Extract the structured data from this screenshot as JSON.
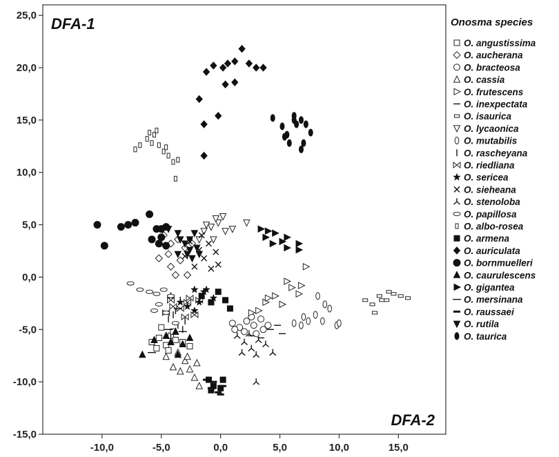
{
  "chart_data": {
    "type": "scatter",
    "title": "",
    "corner_labels": {
      "top_left": "DFA-1",
      "bottom_right": "DFA-2"
    },
    "xlim": [
      -15,
      19
    ],
    "ylim": [
      -15,
      26
    ],
    "x_ticks": [
      {
        "value": -10,
        "label": "-10,0"
      },
      {
        "value": -5,
        "label": "-5,0"
      },
      {
        "value": 0,
        "label": "0,0"
      },
      {
        "value": 5,
        "label": "5,0"
      },
      {
        "value": 10,
        "label": "10,0"
      },
      {
        "value": 15,
        "label": "15,0"
      }
    ],
    "y_ticks": [
      {
        "value": 25,
        "label": "25,0"
      },
      {
        "value": 20,
        "label": "20,0"
      },
      {
        "value": 15,
        "label": "15,0"
      },
      {
        "value": 10,
        "label": "10,0"
      },
      {
        "value": 5,
        "label": "5,0"
      },
      {
        "value": 0,
        "label": "0,0"
      },
      {
        "value": -5,
        "label": "-5,0"
      },
      {
        "value": -10,
        "label": "-10,0"
      },
      {
        "value": -15,
        "label": "-15,0"
      }
    ],
    "legend": {
      "title": "Onosma species",
      "placement": "right"
    },
    "series": [
      {
        "name": "O. angustissima",
        "marker": "square-open",
        "points": [
          [
            -5.8,
            -6.2
          ],
          [
            -5.2,
            -5.8
          ],
          [
            -4.6,
            -6.5
          ],
          [
            -4.2,
            -5.6
          ],
          [
            -5.0,
            -4.8
          ],
          [
            -3.8,
            -6.0
          ],
          [
            -4.4,
            -7.0
          ],
          [
            -3.2,
            -6.2
          ],
          [
            -2.6,
            -6.6
          ],
          [
            -5.4,
            -6.8
          ],
          [
            -4.0,
            -5.2
          ]
        ]
      },
      {
        "name": "O. aucherana",
        "marker": "diamond-open",
        "points": [
          [
            -4.8,
            4.0
          ],
          [
            -4.2,
            3.2
          ],
          [
            -3.6,
            3.6
          ],
          [
            -4.4,
            2.2
          ],
          [
            -3.0,
            2.8
          ],
          [
            -5.2,
            1.8
          ],
          [
            -4.2,
            1.0
          ],
          [
            -3.8,
            0.2
          ],
          [
            -2.8,
            0.2
          ],
          [
            -3.4,
            1.6
          ],
          [
            -2.4,
            3.2
          ]
        ]
      },
      {
        "name": "O. bracteosa",
        "marker": "circle-open",
        "points": [
          [
            1.0,
            -4.4
          ],
          [
            1.6,
            -4.8
          ],
          [
            2.2,
            -4.2
          ],
          [
            2.8,
            -4.6
          ],
          [
            3.4,
            -4.0
          ],
          [
            4.0,
            -4.6
          ],
          [
            2.0,
            -5.2
          ],
          [
            1.2,
            -5.0
          ],
          [
            3.0,
            -5.4
          ],
          [
            2.6,
            -3.8
          ],
          [
            3.6,
            -5.0
          ]
        ]
      },
      {
        "name": "O. cassia",
        "marker": "triangle-up-open",
        "points": [
          [
            -3.6,
            -7.2
          ],
          [
            -3.0,
            -8.0
          ],
          [
            -2.6,
            -8.8
          ],
          [
            -2.2,
            -9.6
          ],
          [
            -1.8,
            -10.4
          ],
          [
            -4.0,
            -8.6
          ],
          [
            -3.4,
            -9.0
          ],
          [
            -2.8,
            -7.6
          ],
          [
            -4.6,
            -7.6
          ],
          [
            -2.0,
            -8.2
          ]
        ]
      },
      {
        "name": "O. frutescens",
        "marker": "triangle-right-open",
        "points": [
          [
            3.2,
            -3.2
          ],
          [
            3.8,
            -2.4
          ],
          [
            4.6,
            -1.8
          ],
          [
            5.2,
            -2.6
          ],
          [
            6.0,
            -1.0
          ],
          [
            6.6,
            -1.6
          ],
          [
            7.2,
            1.0
          ],
          [
            5.6,
            -0.4
          ],
          [
            4.0,
            -2.0
          ],
          [
            2.6,
            -3.4
          ],
          [
            6.8,
            -0.8
          ]
        ]
      },
      {
        "name": "O. inexpectata",
        "marker": "dash",
        "points": [
          [
            4.2,
            -5.0
          ],
          [
            5.2,
            -5.4
          ],
          [
            3.4,
            -5.8
          ],
          [
            4.8,
            -4.6
          ],
          [
            2.6,
            -5.6
          ]
        ]
      },
      {
        "name": "O. isaurica",
        "marker": "rect-open",
        "points": [
          [
            12.2,
            -2.2
          ],
          [
            12.8,
            -2.6
          ],
          [
            13.4,
            -1.8
          ],
          [
            14.0,
            -2.2
          ],
          [
            14.6,
            -1.6
          ],
          [
            15.2,
            -1.8
          ],
          [
            15.8,
            -2.0
          ],
          [
            14.2,
            -1.4
          ],
          [
            13.0,
            -3.4
          ],
          [
            13.6,
            -2.2
          ]
        ]
      },
      {
        "name": "O. lycaonica",
        "marker": "triangle-down-open",
        "points": [
          [
            -1.4,
            4.4
          ],
          [
            -0.8,
            4.8
          ],
          [
            -0.2,
            5.2
          ],
          [
            0.4,
            4.4
          ],
          [
            1.0,
            4.6
          ],
          [
            -1.8,
            3.6
          ],
          [
            -0.6,
            3.6
          ],
          [
            -1.2,
            5.0
          ],
          [
            2.2,
            5.2
          ],
          [
            0.2,
            5.8
          ],
          [
            -0.4,
            5.6
          ]
        ]
      },
      {
        "name": "O. mutabilis",
        "marker": "ellipse-v-open",
        "points": [
          [
            6.2,
            -4.4
          ],
          [
            6.8,
            -4.6
          ],
          [
            7.4,
            -4.2
          ],
          [
            8.0,
            -3.6
          ],
          [
            8.6,
            -4.2
          ],
          [
            8.2,
            -1.8
          ],
          [
            9.2,
            -3.0
          ],
          [
            7.0,
            -3.8
          ],
          [
            9.8,
            -4.6
          ],
          [
            8.8,
            -2.6
          ],
          [
            10.0,
            -4.4
          ]
        ]
      },
      {
        "name": "O. rascheyana",
        "marker": "vbar",
        "points": [
          [
            -4.4,
            -4.0
          ],
          [
            -3.8,
            -3.2
          ],
          [
            -3.4,
            -2.2
          ],
          [
            -3.2,
            -5.0
          ],
          [
            -3.6,
            -4.6
          ],
          [
            -4.0,
            -3.6
          ],
          [
            -3.0,
            -4.2
          ],
          [
            -4.2,
            -5.8
          ]
        ]
      },
      {
        "name": "O. riedliana",
        "marker": "bowtie",
        "points": [
          [
            -4.6,
            -3.4
          ],
          [
            -4.0,
            -2.8
          ],
          [
            -3.4,
            -3.0
          ],
          [
            -2.8,
            -2.4
          ],
          [
            -2.2,
            -3.6
          ],
          [
            -3.0,
            -3.8
          ],
          [
            -4.2,
            -2.2
          ],
          [
            -1.8,
            -2.2
          ],
          [
            -2.6,
            -2.0
          ]
        ]
      },
      {
        "name": "O. sericea",
        "marker": "star",
        "points": [
          [
            -3.4,
            -2.4
          ],
          [
            -2.8,
            -2.8
          ],
          [
            -2.2,
            -3.2
          ],
          [
            -1.8,
            -2.4
          ],
          [
            -1.4,
            -1.4
          ],
          [
            -0.6,
            -2.0
          ],
          [
            -1.2,
            -1.2
          ],
          [
            -4.2,
            -1.8
          ],
          [
            -2.2,
            -1.2
          ]
        ]
      },
      {
        "name": "O. sieheana",
        "marker": "x",
        "points": [
          [
            -2.6,
            3.4
          ],
          [
            -1.8,
            2.6
          ],
          [
            -1.0,
            3.2
          ],
          [
            -0.4,
            2.4
          ],
          [
            -1.4,
            1.8
          ],
          [
            -2.2,
            1.0
          ],
          [
            -0.8,
            0.8
          ],
          [
            -0.2,
            1.2
          ],
          [
            -3.0,
            2.0
          ],
          [
            -1.6,
            4.0
          ]
        ]
      },
      {
        "name": "O. stenoloba",
        "marker": "tri",
        "points": [
          [
            1.4,
            -5.6
          ],
          [
            2.0,
            -6.2
          ],
          [
            2.6,
            -6.8
          ],
          [
            3.2,
            -6.0
          ],
          [
            3.8,
            -6.4
          ],
          [
            4.4,
            -7.2
          ],
          [
            3.0,
            -7.4
          ],
          [
            1.8,
            -7.2
          ],
          [
            3.0,
            -10.0
          ],
          [
            2.4,
            -5.4
          ]
        ]
      },
      {
        "name": "O. papillosa",
        "marker": "ellipse-h-open",
        "points": [
          [
            -7.6,
            -0.6
          ],
          [
            -6.8,
            -1.2
          ],
          [
            -6.0,
            -1.4
          ],
          [
            -5.4,
            -1.6
          ],
          [
            -4.8,
            -1.2
          ],
          [
            -4.2,
            -1.8
          ],
          [
            -5.6,
            -3.2
          ],
          [
            -4.6,
            -3.4
          ],
          [
            -3.8,
            -4.4
          ],
          [
            -5.2,
            -2.6
          ]
        ]
      },
      {
        "name": "O. albo-rosea",
        "marker": "rect-v-open",
        "points": [
          [
            -7.2,
            12.2
          ],
          [
            -6.8,
            12.6
          ],
          [
            -6.2,
            13.2
          ],
          [
            -5.6,
            13.6
          ],
          [
            -5.2,
            12.6
          ],
          [
            -4.8,
            12.0
          ],
          [
            -4.4,
            11.6
          ],
          [
            -4.0,
            11.0
          ],
          [
            -3.6,
            11.2
          ],
          [
            -5.8,
            12.8
          ],
          [
            -6.0,
            13.8
          ],
          [
            -5.4,
            14.0
          ],
          [
            -4.6,
            12.4
          ],
          [
            -3.8,
            9.4
          ]
        ]
      },
      {
        "name": "O. armena",
        "marker": "square-filled",
        "points": [
          [
            -1.6,
            -1.8
          ],
          [
            -0.8,
            -2.4
          ],
          [
            -0.2,
            -1.4
          ],
          [
            0.4,
            -2.2
          ],
          [
            0.8,
            -3.0
          ],
          [
            0.2,
            -9.8
          ],
          [
            -0.6,
            -10.4
          ],
          [
            -0.8,
            -10.8
          ],
          [
            0.0,
            -10.6
          ],
          [
            -1.0,
            -9.8
          ]
        ]
      },
      {
        "name": "O. auriculata",
        "marker": "diamond-filled",
        "points": [
          [
            -1.8,
            17.0
          ],
          [
            -1.2,
            19.6
          ],
          [
            -0.6,
            20.2
          ],
          [
            0.2,
            20.0
          ],
          [
            0.6,
            20.4
          ],
          [
            1.2,
            20.6
          ],
          [
            1.8,
            21.8
          ],
          [
            2.4,
            20.4
          ],
          [
            0.4,
            18.4
          ],
          [
            1.2,
            18.6
          ],
          [
            -1.4,
            14.6
          ],
          [
            -0.2,
            15.4
          ],
          [
            3.0,
            20.0
          ],
          [
            3.6,
            20.0
          ],
          [
            -1.4,
            11.6
          ]
        ]
      },
      {
        "name": "O. bornmuelleri",
        "marker": "circle-filled",
        "points": [
          [
            -10.4,
            5.0
          ],
          [
            -9.8,
            3.0
          ],
          [
            -8.4,
            4.8
          ],
          [
            -7.8,
            5.0
          ],
          [
            -7.2,
            5.2
          ],
          [
            -6.0,
            6.0
          ],
          [
            -5.4,
            4.6
          ],
          [
            -5.0,
            4.6
          ],
          [
            -4.6,
            4.8
          ],
          [
            -5.8,
            3.6
          ],
          [
            -5.0,
            3.8
          ],
          [
            -4.6,
            3.0
          ],
          [
            -5.2,
            3.2
          ]
        ]
      },
      {
        "name": "O. caurulescens",
        "marker": "triangle-up-filled",
        "points": [
          [
            -6.6,
            -7.4
          ],
          [
            -5.6,
            -6.0
          ],
          [
            -4.6,
            -5.6
          ],
          [
            -3.8,
            -5.2
          ],
          [
            -3.2,
            -6.4
          ],
          [
            -2.6,
            -5.8
          ],
          [
            -4.2,
            -6.2
          ],
          [
            -3.6,
            -7.4
          ]
        ]
      },
      {
        "name": "O. gigantea",
        "marker": "triangle-right-filled",
        "points": [
          [
            3.4,
            4.6
          ],
          [
            4.0,
            4.4
          ],
          [
            4.6,
            4.2
          ],
          [
            4.4,
            3.2
          ],
          [
            5.2,
            3.4
          ],
          [
            5.6,
            3.8
          ],
          [
            5.6,
            2.8
          ],
          [
            6.6,
            3.2
          ],
          [
            6.6,
            2.6
          ],
          [
            3.8,
            3.8
          ]
        ]
      },
      {
        "name": "O. mersinana",
        "marker": "dash-long",
        "points": [
          [
            -5.8,
            -7.2
          ],
          [
            -4.4,
            -5.0
          ],
          [
            -3.6,
            -3.0
          ],
          [
            -3.2,
            -5.2
          ]
        ]
      },
      {
        "name": "O. raussaei",
        "marker": "dash-thick",
        "points": [
          [
            -1.2,
            -9.8
          ],
          [
            -0.6,
            -10.0
          ],
          [
            0.2,
            -10.4
          ],
          [
            -0.2,
            -11.0
          ],
          [
            0.0,
            -11.2
          ],
          [
            -0.8,
            -10.6
          ]
        ]
      },
      {
        "name": "O. rutila",
        "marker": "triangle-down-filled",
        "points": [
          [
            -4.4,
            4.6
          ],
          [
            -3.6,
            4.2
          ],
          [
            -3.0,
            3.2
          ],
          [
            -2.6,
            3.6
          ],
          [
            -2.2,
            4.2
          ],
          [
            -2.6,
            2.6
          ],
          [
            -3.6,
            2.2
          ],
          [
            -2.8,
            2.2
          ],
          [
            -2.0,
            2.8
          ],
          [
            -2.4,
            1.8
          ],
          [
            -1.8,
            2.2
          ],
          [
            -3.4,
            3.6
          ]
        ]
      },
      {
        "name": "O. taurica",
        "marker": "ellipse-v-filled",
        "points": [
          [
            4.4,
            15.2
          ],
          [
            5.2,
            14.4
          ],
          [
            5.6,
            13.6
          ],
          [
            5.8,
            12.8
          ],
          [
            6.2,
            15.4
          ],
          [
            6.4,
            14.6
          ],
          [
            6.8,
            15.0
          ],
          [
            7.2,
            14.6
          ],
          [
            7.6,
            13.8
          ],
          [
            7.0,
            12.8
          ],
          [
            6.8,
            12.2
          ],
          [
            5.4,
            13.4
          ],
          [
            6.2,
            15.0
          ]
        ]
      }
    ]
  }
}
